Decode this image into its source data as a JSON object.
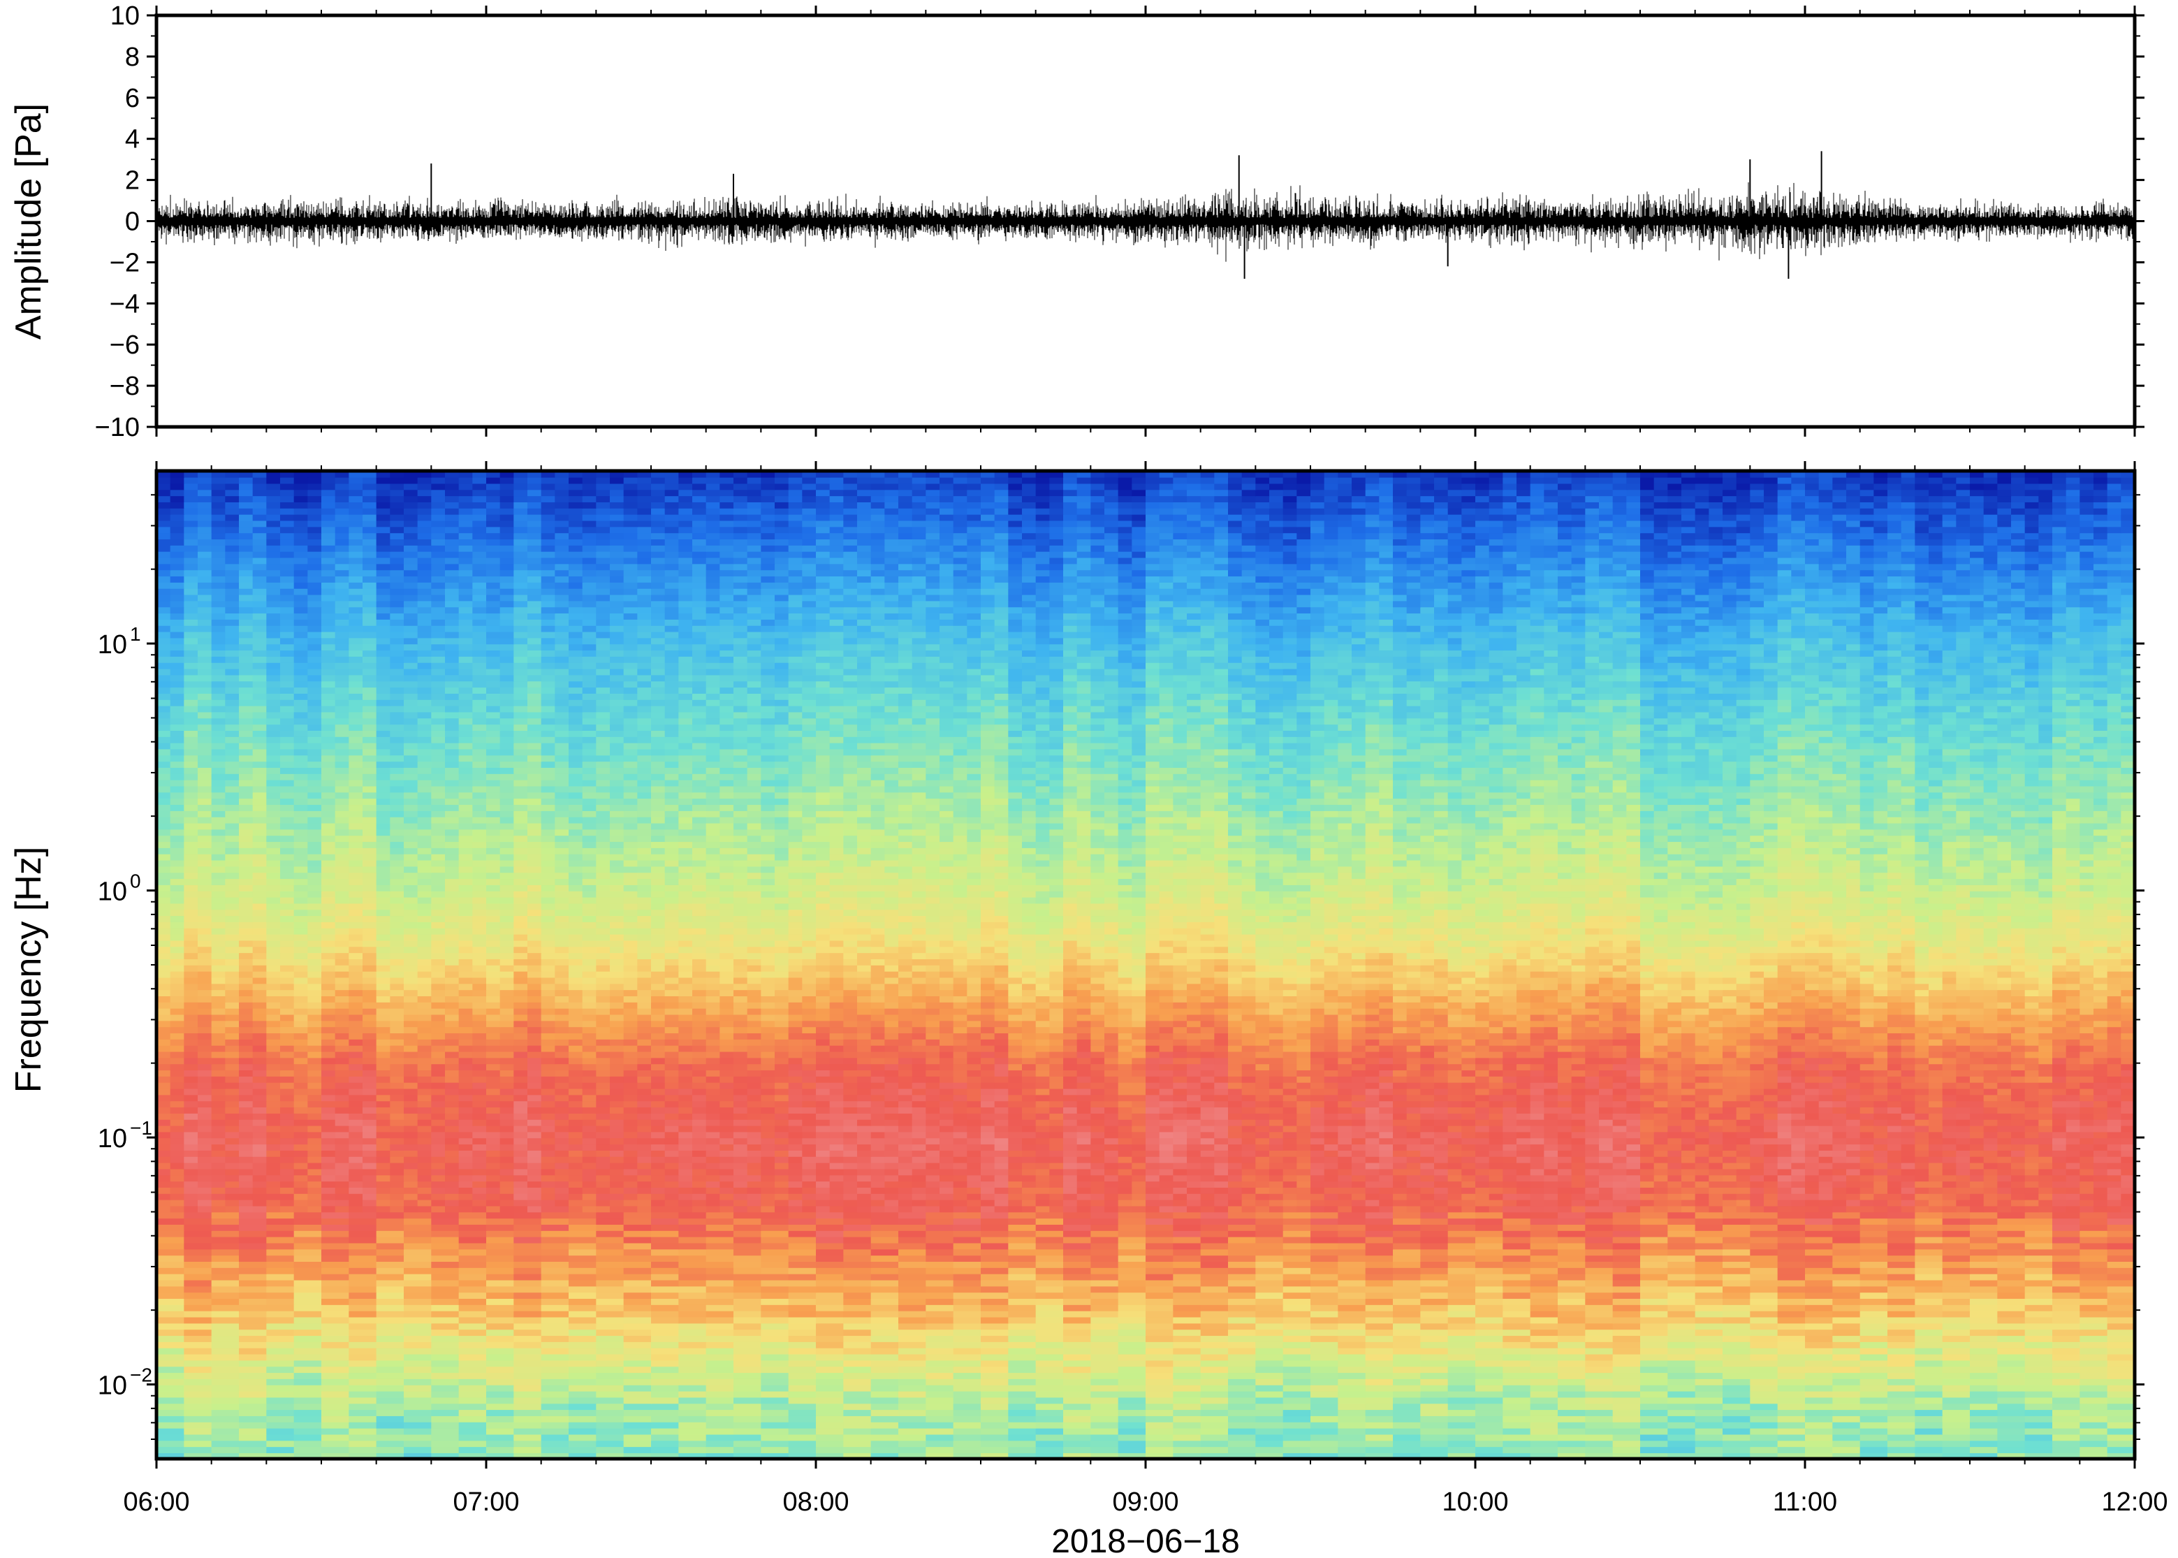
{
  "chart_data": [
    {
      "type": "line",
      "panel": "waveform",
      "ylabel": "Amplitude [Pa]",
      "ylim": [
        -10,
        10
      ],
      "yticks": [
        "10",
        "8",
        "6",
        "4",
        "2",
        "0",
        "−2",
        "−4",
        "−6",
        "−8",
        "−10"
      ],
      "xlim": [
        "06:00",
        "12:00"
      ],
      "grid": false,
      "envelope": {
        "time": [
          "06:00",
          "06:15",
          "06:30",
          "06:45",
          "07:00",
          "07:15",
          "07:30",
          "07:45",
          "08:00",
          "08:15",
          "08:30",
          "08:45",
          "09:00",
          "09:15",
          "09:30",
          "09:45",
          "10:00",
          "10:15",
          "10:30",
          "10:45",
          "11:00",
          "11:15",
          "11:30",
          "11:45",
          "12:00"
        ],
        "amplitude_pa": [
          1.0,
          0.9,
          1.1,
          1.0,
          0.9,
          1.0,
          1.0,
          1.1,
          1.0,
          0.9,
          0.9,
          0.9,
          1.1,
          1.4,
          1.2,
          1.0,
          1.2,
          1.1,
          1.2,
          1.5,
          1.6,
          1.0,
          0.8,
          0.8,
          1.0
        ]
      },
      "peaks": [
        {
          "time": "06:50",
          "value_pa": 2.8
        },
        {
          "time": "07:45",
          "value_pa": 2.3
        },
        {
          "time": "09:17",
          "value_pa": 3.2
        },
        {
          "time": "09:18",
          "value_pa": -2.8
        },
        {
          "time": "09:55",
          "value_pa": -2.2
        },
        {
          "time": "10:50",
          "value_pa": 3.0
        },
        {
          "time": "10:57",
          "value_pa": -2.8
        },
        {
          "time": "11:03",
          "value_pa": 3.4
        }
      ]
    },
    {
      "type": "heatmap",
      "panel": "spectrogram",
      "ylabel": "Frequency [Hz]",
      "yscale": "log",
      "ylim": [
        0.005,
        50
      ],
      "yticks": [
        {
          "value": 0.01,
          "base": "10",
          "exp": "−2"
        },
        {
          "value": 0.1,
          "base": "10",
          "exp": "−1"
        },
        {
          "value": 1,
          "base": "10",
          "exp": "0"
        },
        {
          "value": 10,
          "base": "10",
          "exp": "1"
        }
      ],
      "xlabel": "2018−06−18",
      "xticks": [
        "06:00",
        "07:00",
        "08:00",
        "09:00",
        "10:00",
        "11:00",
        "12:00"
      ],
      "xlim": [
        "06:00",
        "12:00"
      ],
      "colormap": [
        "#0a1aa8",
        "#1e6ee8",
        "#3fb4f0",
        "#6ee0d2",
        "#c8f08c",
        "#f6e07a",
        "#f8a050",
        "#ee5a52",
        "#f08c8c"
      ],
      "level_profile": {
        "frequency_hz": [
          0.005,
          0.008,
          0.012,
          0.02,
          0.03,
          0.05,
          0.1,
          0.2,
          0.35,
          0.6,
          1.0,
          2.0,
          5.0,
          10,
          20,
          50
        ],
        "level_0_to_1": [
          0.42,
          0.46,
          0.55,
          0.68,
          0.76,
          0.86,
          0.9,
          0.84,
          0.72,
          0.6,
          0.52,
          0.45,
          0.36,
          0.28,
          0.18,
          0.04
        ]
      }
    }
  ]
}
